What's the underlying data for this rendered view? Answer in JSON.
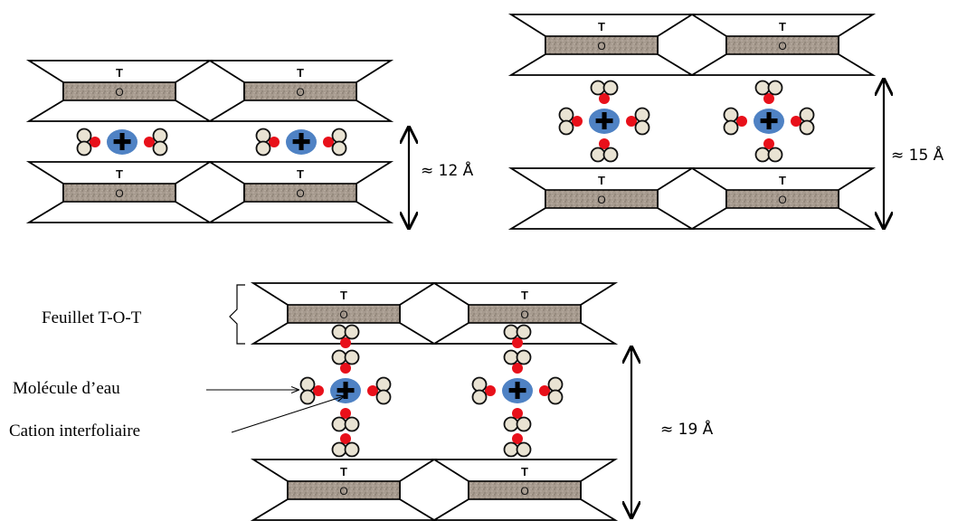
{
  "sheet_labels": {
    "tetra": "T",
    "octa": "O"
  },
  "cation_symbol": "✚",
  "panels": [
    {
      "spacing_label": "≈ 12 Å",
      "water_arrangement": "2 molecules per cation (lateral)"
    },
    {
      "spacing_label": "≈ 15 Å",
      "water_arrangement": "4 molecules per cation (lateral + vertical)"
    },
    {
      "spacing_label": "≈ 19 Å",
      "water_arrangement": "6 molecules per cation (lateral + 2 vertical each side)"
    }
  ],
  "legend": {
    "sheet": "Feuillet T-O-T",
    "water": "Molécule d’eau",
    "cation": "Cation interfoliaire"
  },
  "colors": {
    "octa_fill": "#a59a8e",
    "oxygen": "#e8101a",
    "hydrogen": "#e9e3d3",
    "cation": "#4f82c4",
    "outline": "#000000"
  }
}
